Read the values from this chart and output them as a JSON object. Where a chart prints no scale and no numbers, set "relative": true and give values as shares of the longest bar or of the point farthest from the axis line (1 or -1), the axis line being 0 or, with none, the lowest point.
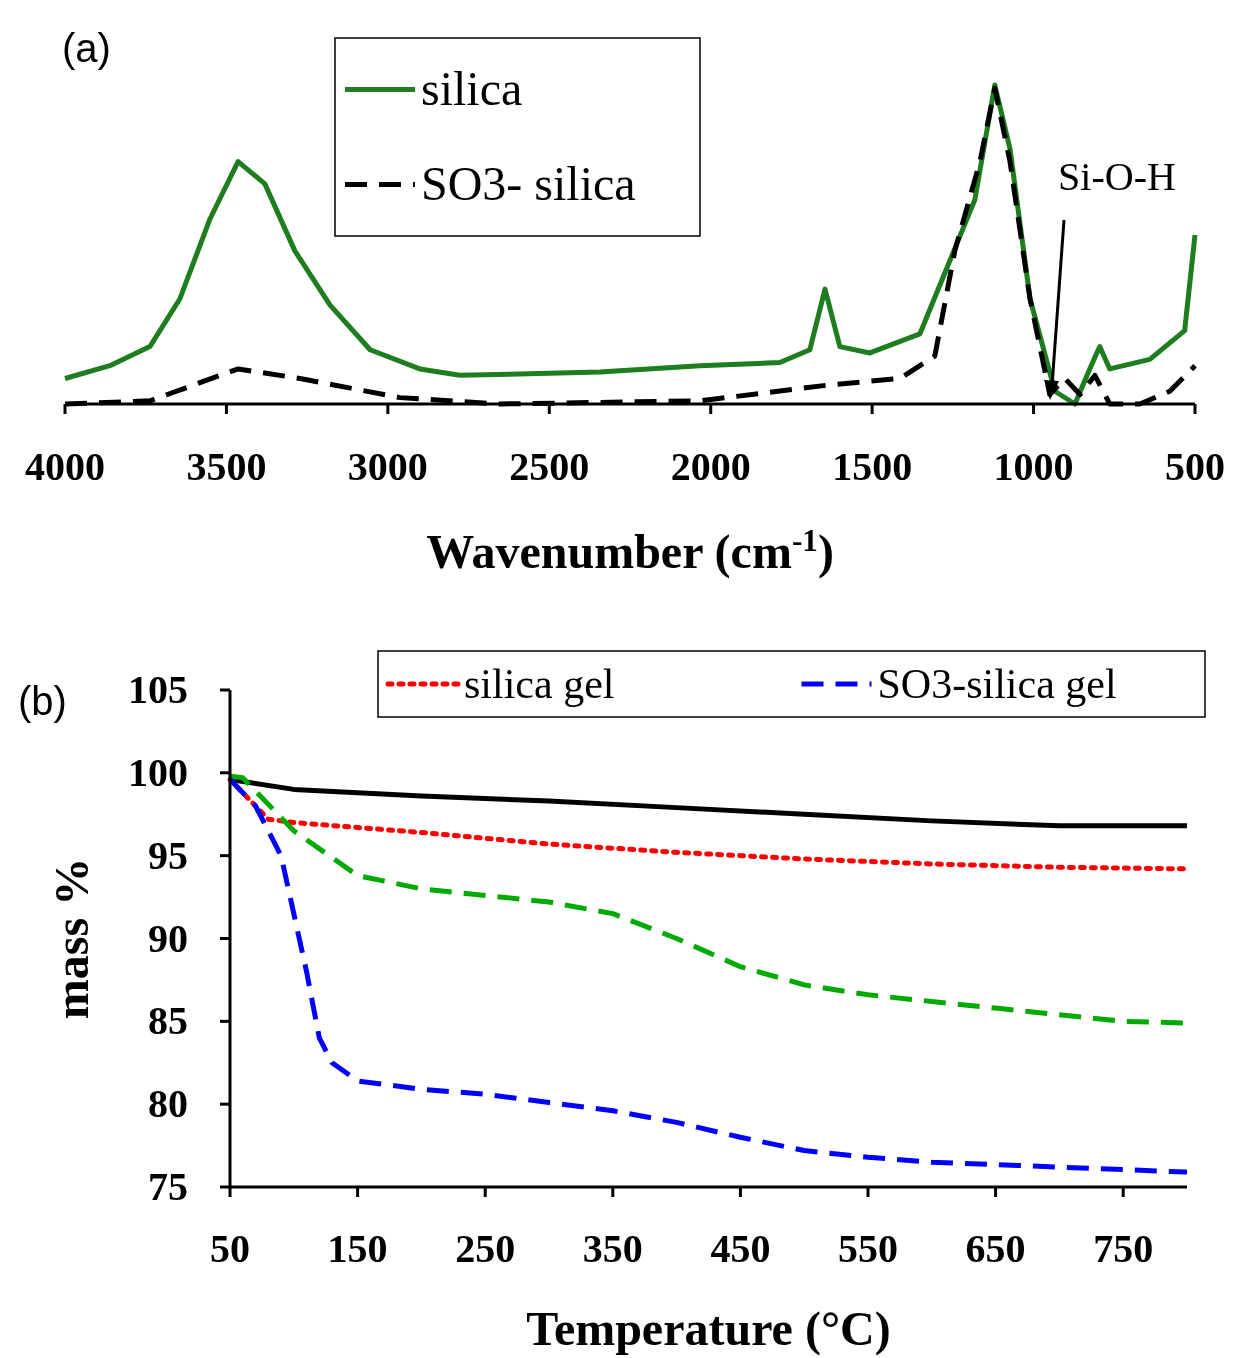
{
  "chart_data": [
    {
      "type": "line",
      "relative": true,
      "xlabel": "Wavenumber (cm$^{-1}$)",
      "annotations": [
        "(a)",
        "Si-O-H"
      ],
      "xlim": [
        4000,
        500
      ],
      "xticks": [
        4000,
        3500,
        3000,
        2500,
        2000,
        1500,
        1000,
        500
      ],
      "legend": "top",
      "series": [
        {
          "name": "silica",
          "color": "#1e7d1e",
          "line_style": "solid",
          "x": [
            4000,
            3861,
            3737,
            3644,
            3551,
            3464,
            3381,
            3288,
            3179,
            3055,
            2901,
            2777,
            2343,
            2033,
            1786,
            1693,
            1646,
            1600,
            1507,
            1352,
            1259,
            1182,
            1120,
            1073,
            1011,
            934,
            872,
            826,
            795,
            764,
            640,
            532,
            500
          ],
          "values": [
            0.08,
            0.12,
            0.18,
            0.33,
            0.58,
            0.76,
            0.69,
            0.48,
            0.31,
            0.17,
            0.11,
            0.09,
            0.1,
            0.12,
            0.13,
            0.17,
            0.36,
            0.18,
            0.16,
            0.22,
            0.45,
            0.64,
            1,
            0.8,
            0.33,
            0.04,
            0,
            0.11,
            0.18,
            0.11,
            0.14,
            0.23,
            0.53
          ]
        },
        {
          "name": "SO3- silica",
          "color": "#000000",
          "line_style": "dashed",
          "x": [
            4000,
            3737,
            3464,
            3272,
            2963,
            2653,
            2033,
            1631,
            1414,
            1306,
            1244,
            1166,
            1120,
            1073,
            1011,
            950,
            903,
            856,
            810,
            764,
            671,
            578,
            500
          ],
          "values": [
            0,
            0.01,
            0.11,
            0.08,
            0.02,
            0,
            0.01,
            0.06,
            0.08,
            0.15,
            0.48,
            0.76,
            0.99,
            0.76,
            0.33,
            0.03,
            0.08,
            0.03,
            0.09,
            0,
            0,
            0.04,
            0.12
          ]
        }
      ]
    },
    {
      "type": "line",
      "xlabel": "Temperature (°C)",
      "ylabel": "mass %",
      "annotations": [
        "(b)"
      ],
      "xlim": [
        50,
        800
      ],
      "xticks": [
        50,
        150,
        250,
        350,
        450,
        550,
        650,
        750
      ],
      "ylim": [
        75,
        105
      ],
      "yticks": [
        75,
        80,
        85,
        90,
        95,
        100,
        105
      ],
      "legend": "top",
      "series": [
        {
          "color": "#000000",
          "line_style": "solid",
          "x": [
            50,
            100,
            200,
            300,
            400,
            500,
            600,
            700,
            800
          ],
          "values": [
            99.6,
            99,
            98.6,
            98.3,
            97.9,
            97.5,
            97.1,
            96.8,
            96.8
          ]
        },
        {
          "name": "silica gel",
          "color": "#ff0000",
          "line_style": "dotted",
          "x": [
            50,
            80,
            100,
            200,
            300,
            400,
            500,
            600,
            700,
            800
          ],
          "values": [
            99.6,
            97.2,
            97,
            96.4,
            95.7,
            95.2,
            94.8,
            94.5,
            94.3,
            94.2
          ]
        },
        {
          "color": "#00aa00",
          "line_style": "dashed",
          "x": [
            50,
            60,
            100,
            150,
            200,
            250,
            300,
            350,
            400,
            450,
            500,
            550,
            600,
            650,
            700,
            750,
            800
          ],
          "values": [
            99.8,
            99.7,
            96.5,
            93.8,
            93,
            92.6,
            92.2,
            91.5,
            90,
            88.3,
            87.2,
            86.6,
            86.2,
            85.8,
            85.4,
            85,
            84.9
          ]
        },
        {
          "name": "SO3-silica gel",
          "color": "#0000ff",
          "line_style": "dashed",
          "x": [
            50,
            70,
            90,
            100,
            110,
            120,
            130,
            150,
            200,
            250,
            300,
            350,
            400,
            450,
            500,
            550,
            600,
            700,
            800
          ],
          "values": [
            99.6,
            98,
            95,
            91.5,
            88,
            84,
            82.5,
            81.4,
            80.9,
            80.6,
            80.1,
            79.6,
            78.9,
            78,
            77.2,
            76.8,
            76.5,
            76.2,
            75.9
          ]
        }
      ]
    }
  ]
}
